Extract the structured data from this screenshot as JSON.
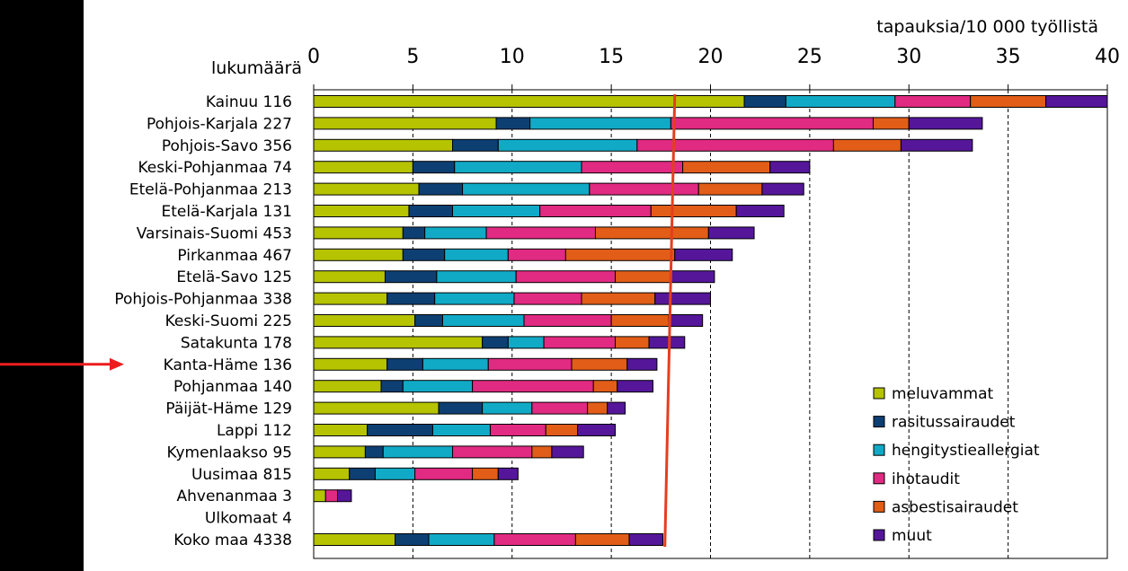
{
  "chart_data": {
    "type": "bar",
    "orientation": "horizontal",
    "stacked": true,
    "title": "",
    "xlabel": "tapauksia/10 000 työllistä",
    "ylabel": "lukumäärä",
    "xlim": [
      0,
      40
    ],
    "xticks": [
      0,
      5,
      10,
      15,
      20,
      25,
      30,
      35,
      40
    ],
    "grid": "vertical dashed",
    "legend_position": "bottom-right",
    "categories": [
      "Kainuu 116",
      "Pohjois-Karjala 227",
      "Pohjois-Savo 356",
      "Keski-Pohjanmaa 74",
      "Etelä-Pohjanmaa 213",
      "Etelä-Karjala 131",
      "Varsinais-Suomi 453",
      "Pirkanmaa 467",
      "Etelä-Savo 125",
      "Pohjois-Pohjanmaa 338",
      "Keski-Suomi 225",
      "Satakunta 178",
      "Kanta-Häme 136",
      "Pohjanmaa 140",
      "Päijät-Häme 129",
      "Lappi 112",
      "Kymenlaakso 95",
      "Uusimaa 815",
      "Ahvenanmaa 3",
      "Ulkomaat 4",
      "Koko maa 4338"
    ],
    "series": [
      {
        "name": "meluvammat",
        "color": "#b5c300",
        "values": [
          21.7,
          9.2,
          7.0,
          5.0,
          5.3,
          4.8,
          4.5,
          4.5,
          3.6,
          3.7,
          5.1,
          8.5,
          3.7,
          3.4,
          6.3,
          2.7,
          2.6,
          1.8,
          0.6,
          0,
          4.1
        ]
      },
      {
        "name": "rasitussairaudet",
        "color": "#0d3f73",
        "values": [
          2.1,
          1.7,
          2.3,
          2.1,
          2.2,
          2.2,
          1.1,
          2.1,
          2.6,
          2.4,
          1.4,
          1.3,
          1.8,
          1.1,
          2.2,
          3.3,
          0.9,
          1.3,
          0,
          0,
          1.7
        ]
      },
      {
        "name": "hengitystieallergiat",
        "color": "#11aac6",
        "values": [
          5.5,
          7.1,
          7.0,
          6.4,
          6.4,
          4.4,
          3.1,
          3.2,
          4.0,
          4.0,
          4.1,
          1.8,
          3.3,
          3.5,
          2.5,
          2.9,
          3.5,
          2.0,
          0,
          0,
          3.3
        ]
      },
      {
        "name": "ihotaudit",
        "color": "#e12a82",
        "values": [
          3.8,
          10.2,
          9.9,
          5.1,
          5.5,
          5.6,
          5.5,
          2.9,
          5.0,
          3.4,
          4.4,
          3.6,
          4.2,
          6.1,
          2.8,
          2.8,
          4.0,
          2.9,
          0.6,
          0,
          4.1
        ]
      },
      {
        "name": "asbestisairaudet",
        "color": "#e25d17",
        "values": [
          3.8,
          1.8,
          3.4,
          4.4,
          3.2,
          4.3,
          5.7,
          5.5,
          2.8,
          3.7,
          2.9,
          1.7,
          2.8,
          1.2,
          1.0,
          1.6,
          1.0,
          1.3,
          0,
          0,
          2.7
        ]
      },
      {
        "name": "muut",
        "color": "#55169a",
        "values": [
          3.1,
          3.7,
          3.6,
          2.0,
          2.1,
          2.4,
          2.3,
          2.9,
          2.2,
          2.8,
          1.7,
          1.8,
          1.5,
          1.8,
          0.9,
          1.9,
          1.6,
          1.0,
          0.7,
          0,
          1.7
        ]
      }
    ],
    "reference_line": {
      "color": "#e53e1e",
      "value_top": 18.2,
      "value_bottom": 17.7
    },
    "pointer_arrow": {
      "color": "#ee1c1c",
      "target": "Kanta-Häme 136"
    }
  }
}
